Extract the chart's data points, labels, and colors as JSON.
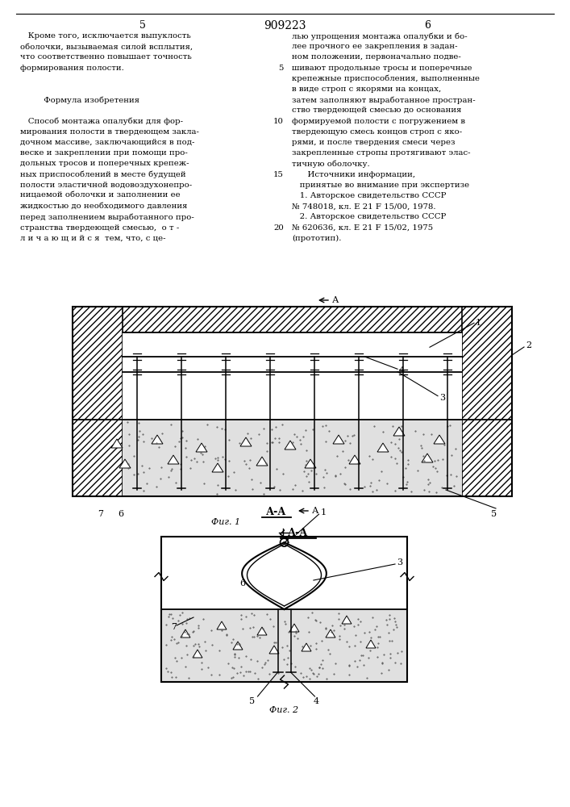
{
  "page_number_left": "5",
  "page_number_center": "909223",
  "page_number_right": "6",
  "text_left_col": [
    "   Кроме того, исключается выпуклость",
    "оболочки, вызываемая силой всплытия,",
    "что соответственно повышает точность",
    "формирования полости.",
    "",
    "",
    "         Формула изобретения",
    "",
    "   Способ монтажа опалубки для фор-",
    "мирования полости в твердеющем закла-",
    "дочном массиве, заключающийся в под-",
    "веске и закреплении при помощи про-",
    "дольных тросов и поперечных крепеж-",
    "ных приспособлений в месте будущей",
    "полости эластичной водовоздухонепро-",
    "ницаемой оболочки и заполнении ее",
    "жидкостью до необходимого давления",
    "перед заполнением выработанного про-",
    "странства твердеющей смесью,  о т -",
    "л и ч а ю щ и й с я  тем, что, с це-"
  ],
  "text_right_col": [
    "лью упрощения монтажа опалубки и бо-",
    "лее прочного ее закрепления в задан-",
    "ном положении, первоначально подве-",
    "шивают продольные тросы и поперечные",
    "крепежные приспособления, выполненные",
    "в виде строп с якорями на концах,",
    "затем заполняют выработанное простран-",
    "ство твердеющей смесью до основания",
    "формируемой полости с погружением в",
    "твердеющую смесь концов строп с яко-",
    "рями, и после твердения смеси через",
    "закрепленные стропы протягивают элас-",
    "тичную оболочку.",
    "      Источники информации,",
    "   принятые во внимание при экспертизе",
    "   1. Авторское свидетельство СССР",
    "№ 748018, кл. Е 21 F 15/00, 1978.",
    "   2. Авторское свидетельство СССР",
    "№ 620636, кл. Е 21 F 15/02, 1975",
    "(прототип)."
  ],
  "line_num_map": {
    "3": "5",
    "8": "10",
    "13": "15",
    "18": "20"
  },
  "fig1_label": "Фиг. 1",
  "fig2_label": "Фиг. 2",
  "section_label": "А-А",
  "bg_color": "#ffffff",
  "text_color": "#1a1a1a"
}
